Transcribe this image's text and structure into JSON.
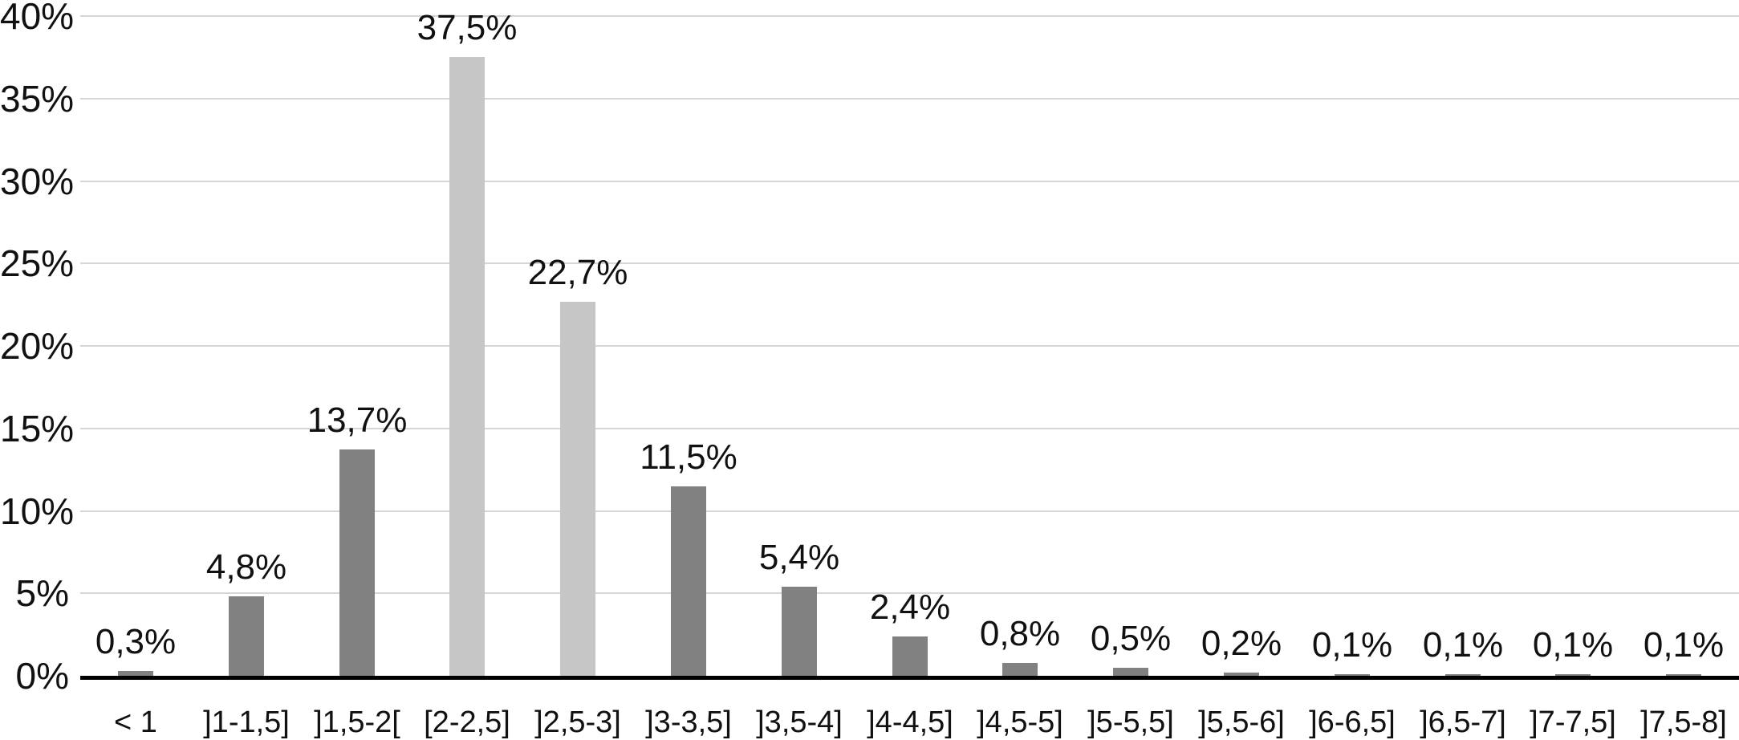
{
  "chart_data": {
    "type": "bar",
    "title": "",
    "xlabel": "",
    "ylabel": "",
    "categories": [
      "< 1",
      "]1-1,5]",
      "]1,5-2[",
      "[2-2,5]",
      "]2,5-3]",
      "]3-3,5]",
      "]3,5-4]",
      "]4-4,5]",
      "]4,5-5]",
      "]5-5,5]",
      "]5,5-6]",
      "]6-6,5]",
      "]6,5-7]",
      "]7-7,5]",
      "]7,5-8]"
    ],
    "values": [
      0.3,
      4.8,
      13.7,
      37.5,
      22.7,
      11.5,
      5.4,
      2.4,
      0.8,
      0.5,
      0.2,
      0.1,
      0.1,
      0.1,
      0.1
    ],
    "value_labels": [
      "0,3%",
      "4,8%",
      "13,7%",
      "37,5%",
      "22,7%",
      "11,5%",
      "5,4%",
      "2,4%",
      "0,8%",
      "0,5%",
      "0,2%",
      "0,1%",
      "0,1%",
      "0,1%",
      "0,1%"
    ],
    "y_ticks": [
      {
        "value": 40,
        "label": "40%"
      },
      {
        "value": 35,
        "label": "35%"
      },
      {
        "value": 30,
        "label": "30%"
      },
      {
        "value": 25,
        "label": "25%"
      },
      {
        "value": 20,
        "label": "20%"
      },
      {
        "value": 15,
        "label": "15%"
      },
      {
        "value": 10,
        "label": "10%"
      },
      {
        "value": 5,
        "label": "5%"
      },
      {
        "value": 0,
        "label": "0%"
      }
    ],
    "ylim": [
      0,
      40
    ],
    "grid": true,
    "legend": "none",
    "highlight_indices": [
      3,
      4
    ],
    "colors": {
      "bar_default": "#818181",
      "bar_highlight": "#c6c6c6",
      "gridline": "#d6d6d6",
      "axis_line": "#000000",
      "text": "#111111",
      "background": "#ffffff"
    }
  }
}
